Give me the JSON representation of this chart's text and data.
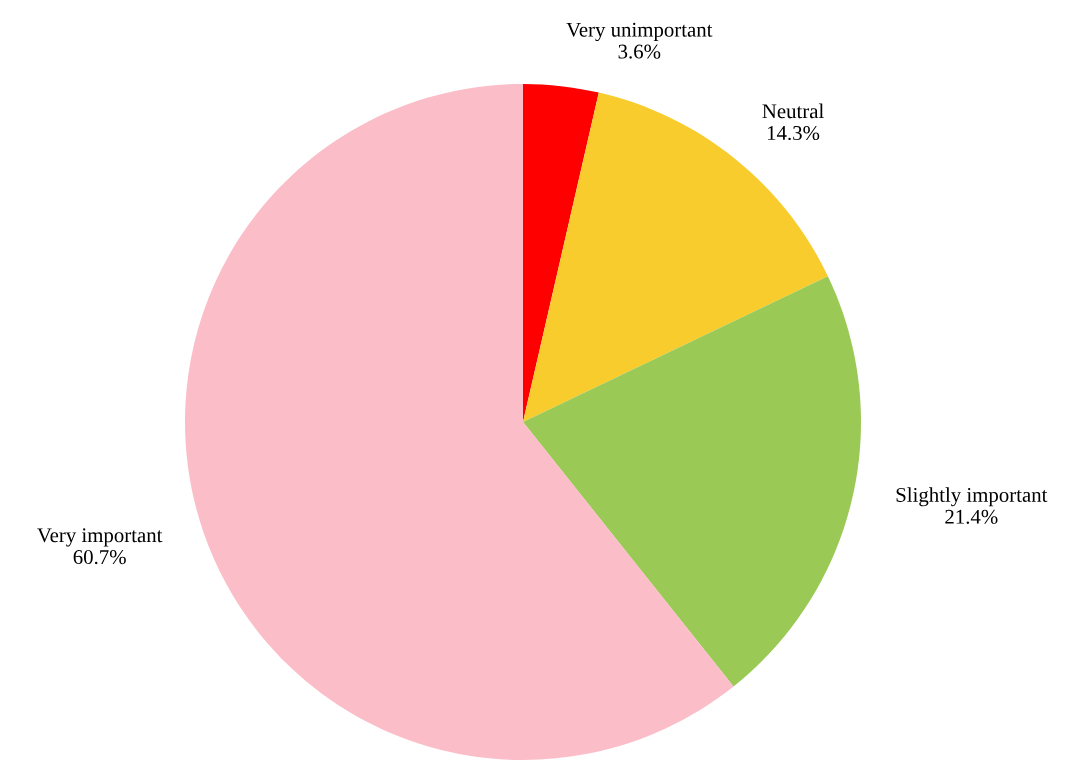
{
  "chart_data": {
    "type": "pie",
    "categories": [
      "Very unimportant",
      "Neutral",
      "Slightly important",
      "Very important"
    ],
    "values": [
      3.6,
      14.3,
      21.4,
      60.7
    ],
    "value_labels": [
      "3.6%",
      "14.3%",
      "21.4%",
      "60.7%"
    ],
    "colors": [
      "#fe0000",
      "#f9cc2e",
      "#9bc955",
      "#fbbdc8"
    ],
    "legend": false
  }
}
